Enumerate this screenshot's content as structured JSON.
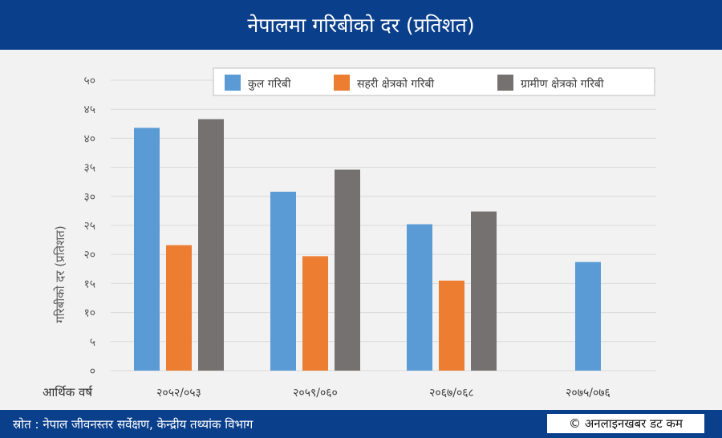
{
  "title": "नेपालमा गरिबीको दर (प्रतिशत)",
  "footer": {
    "source": "स्रोत : नेपाल जीवनस्तर सर्वेक्षण, केन्द्रीय तथ्यांक विभाग",
    "credit": "© अनलाइनखबर डट कम"
  },
  "colors": {
    "total": "#5b9bd5",
    "urban": "#ed7d31",
    "rural": "#767171",
    "header": "#0a3f8c"
  },
  "chart_data": {
    "type": "bar",
    "ylabel": "गरिबीको दर (प्रतिशत)",
    "xlabel": "आर्थिक वर्ष",
    "ylim": [
      0,
      50
    ],
    "yticks": [
      0,
      5,
      10,
      15,
      20,
      25,
      30,
      35,
      40,
      45,
      50
    ],
    "ytick_labels": [
      "०",
      "५",
      "१०",
      "१५",
      "२०",
      "२५",
      "३०",
      "३५",
      "४०",
      "४५",
      "५०"
    ],
    "categories": [
      "२०५२/०५३",
      "२०५९/०६०",
      "२०६७/०६८",
      "२०७५/०७६"
    ],
    "series": [
      {
        "name": "कुल गरिबी",
        "values": [
          41.8,
          30.8,
          25.2,
          18.7
        ]
      },
      {
        "name": "सहरी क्षेत्रको गरिबी",
        "values": [
          21.6,
          19.7,
          15.5,
          null
        ]
      },
      {
        "name": "ग्रामीण क्षेत्रको गरिबी",
        "values": [
          43.3,
          34.6,
          27.4,
          null
        ]
      }
    ],
    "legend_position": "top-right",
    "grid": true
  }
}
